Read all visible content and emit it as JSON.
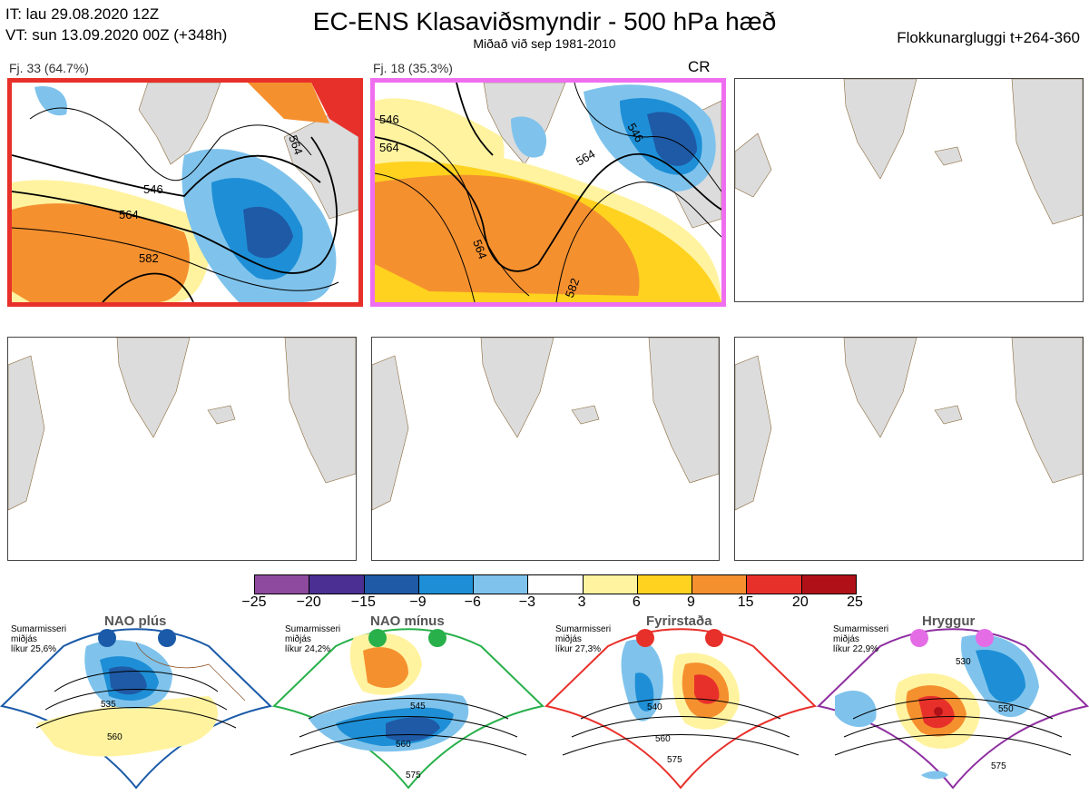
{
  "header": {
    "it_line": "IT: lau 29.08.2020 12Z",
    "vt_line": "VT: sun 13.09.2020 00Z  (+348h)",
    "title": "EC-ENS Klasaviðsmyndir - 500 hPa hæð",
    "subtitle": "Miðað við sep 1981-2010",
    "window": "Flokkunargluggi t+264-360"
  },
  "clusters": [
    {
      "label": "Fj. 33 (64.7%)",
      "highlight": "#e8302a",
      "contours": [
        "546",
        "564",
        "564",
        "582"
      ]
    },
    {
      "label": "Fj. 18 (35.3%)",
      "highlight": "#ef6ef0",
      "tag": "CR",
      "contours": [
        "546",
        "564",
        "546",
        "564",
        "564",
        "582"
      ]
    }
  ],
  "colorbar": {
    "ticks": [
      "−25",
      "−20",
      "−15",
      "−9",
      "−6",
      "−3",
      "3",
      "6",
      "9",
      "15",
      "20",
      "25"
    ],
    "colors": [
      "#8e4a9e",
      "#4b2f92",
      "#1f5aa6",
      "#1e8fd6",
      "#7fc3ec",
      "#ffffff",
      "#fff3a0",
      "#ffd21f",
      "#f5902f",
      "#e8302a",
      "#b01118"
    ]
  },
  "regimes": [
    {
      "name": "NAO plús",
      "note": [
        "Sumarmisseri",
        "miðjás",
        "líkur 25,6%"
      ],
      "color": "#1a5aa8",
      "contours": [
        "535",
        "560"
      ]
    },
    {
      "name": "NAO mínus",
      "note": [
        "Sumarmisseri",
        "miðjás",
        "líkur 24,2%"
      ],
      "color": "#28b04a",
      "contours": [
        "545",
        "560",
        "575"
      ]
    },
    {
      "name": "Fyrirstaða",
      "note": [
        "Sumarmisseri",
        "miðjás",
        "líkur 27,3%"
      ],
      "color": "#e8302a",
      "contours": [
        "540",
        "560",
        "575"
      ]
    },
    {
      "name": "Hryggur",
      "note": [
        "Sumarmisseri",
        "miðjás",
        "líkur 22,9%"
      ],
      "color": "#e46de6",
      "contours": [
        "530",
        "550",
        "575"
      ]
    }
  ]
}
